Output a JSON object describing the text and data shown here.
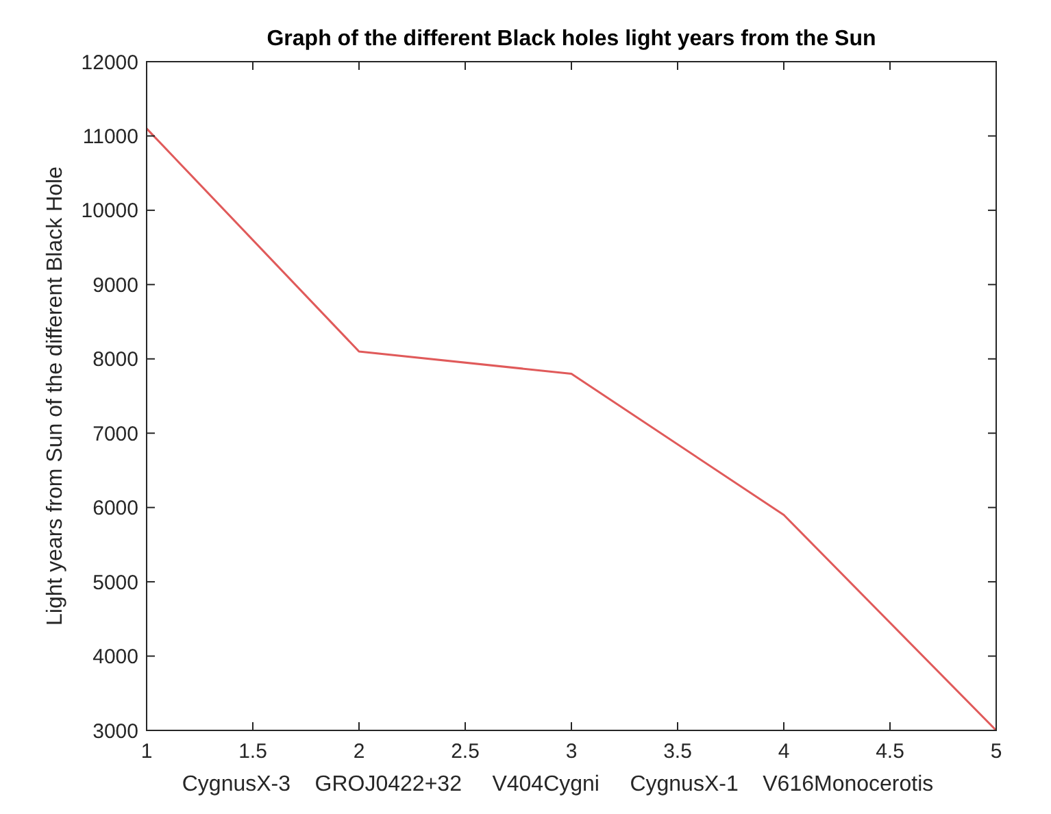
{
  "chart_data": {
    "type": "line",
    "title": "Graph of the different Black holes light years from the Sun",
    "xlabel": "CygnusX-3    GROJ0422+32     V404Cygni     CygnusX-1    V616Monocerotis",
    "ylabel": "Light years from Sun of the different Black Hole",
    "x": [
      1,
      2,
      3,
      4,
      5
    ],
    "series": [
      {
        "color": "#e05a5a",
        "values": [
          11100,
          8100,
          7800,
          5900,
          3000
        ]
      }
    ],
    "xlim": [
      1,
      5
    ],
    "xticks": [
      1,
      1.5,
      2,
      2.5,
      3,
      3.5,
      4,
      4.5,
      5
    ],
    "ylim": [
      3000,
      12000
    ],
    "yticks": [
      3000,
      4000,
      5000,
      6000,
      7000,
      8000,
      9000,
      10000,
      11000,
      12000
    ],
    "marker": "none",
    "line_style": "solid"
  }
}
